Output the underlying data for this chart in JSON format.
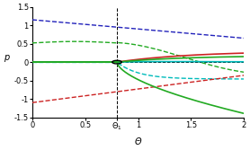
{
  "xlim": [
    0,
    2
  ],
  "ylim": [
    -1.5,
    1.5
  ],
  "xlabel": "Θ",
  "ylabel": "p",
  "theta1": 0.8,
  "colors": {
    "blue": "#2222bb",
    "green": "#22aa22",
    "red": "#cc2222",
    "cyan": "#00bbbb",
    "black": "#000000"
  },
  "figsize": [
    2.78,
    1.67
  ],
  "dpi": 100
}
